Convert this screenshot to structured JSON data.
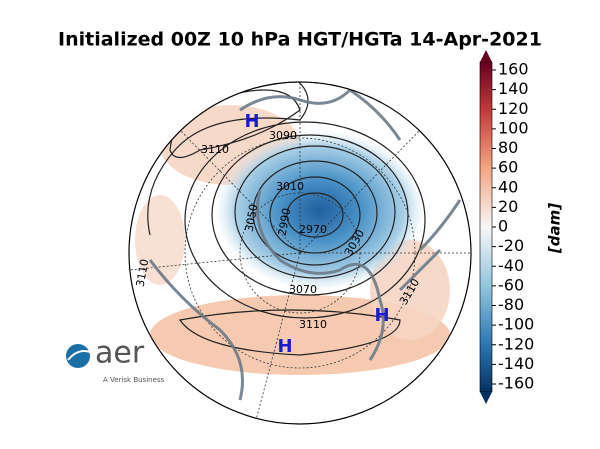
{
  "title": "Initialized 00Z 10 hPa HGT/HGTa 14-Apr-2021",
  "colorbar": {
    "label": "[dam]",
    "lim": [
      -160,
      160
    ],
    "ticks": [
      -160,
      -140,
      -120,
      -100,
      -80,
      -60,
      -40,
      -20,
      0,
      20,
      40,
      60,
      80,
      100,
      120,
      140,
      160
    ]
  },
  "contour_labels": [
    3110,
    3090,
    3010,
    3050,
    2990,
    2970,
    3030,
    3070,
    3110,
    3110,
    3110
  ],
  "highs": [
    "H",
    "H",
    "H"
  ],
  "logo": {
    "name": "aer",
    "tagline": "A Verisk Business"
  }
}
